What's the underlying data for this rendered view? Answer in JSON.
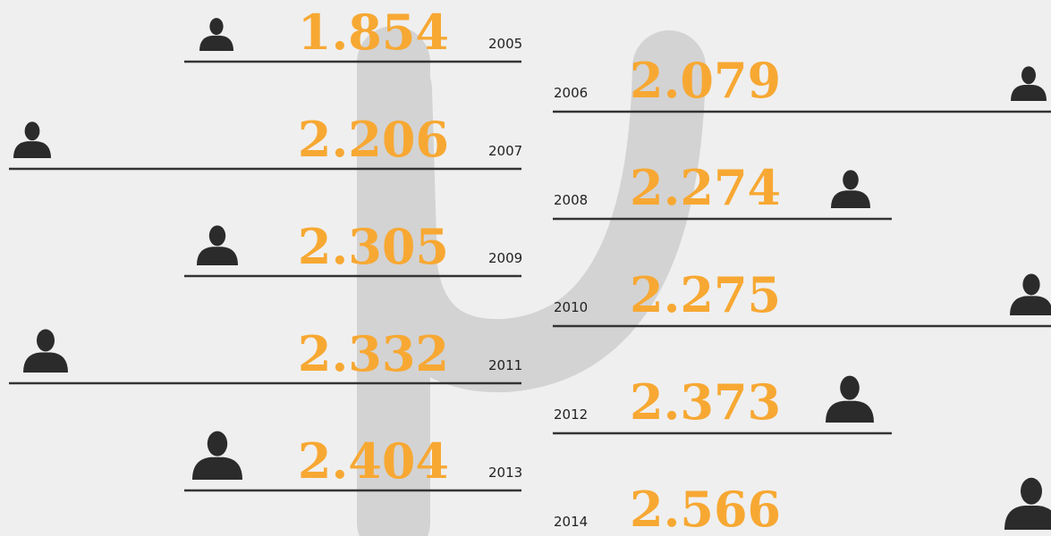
{
  "items": [
    {
      "year": "2005",
      "value": "1.854"
    },
    {
      "year": "2006",
      "value": "2.079"
    },
    {
      "year": "2007",
      "value": "2.206"
    },
    {
      "year": "2008",
      "value": "2.274"
    },
    {
      "year": "2009",
      "value": "2.305"
    },
    {
      "year": "2010",
      "value": "2.275"
    },
    {
      "year": "2011",
      "value": "2.332"
    },
    {
      "year": "2012",
      "value": "2.373"
    },
    {
      "year": "2013",
      "value": "2.404"
    },
    {
      "year": "2014",
      "value": "2.566"
    }
  ]
}
